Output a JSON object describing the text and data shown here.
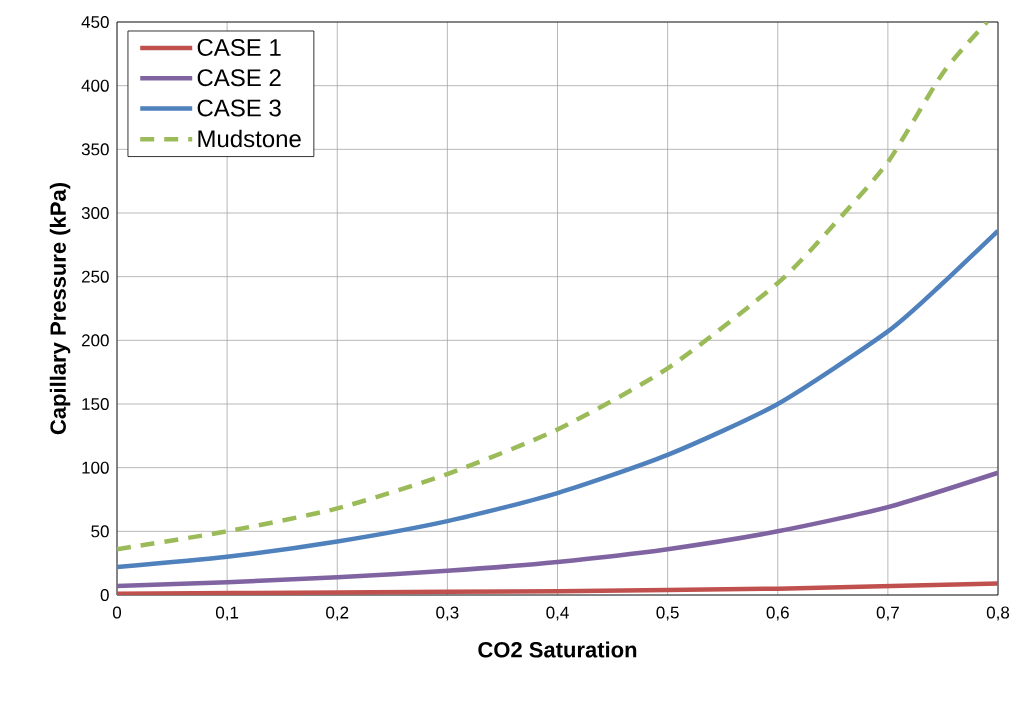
{
  "chart_data": {
    "type": "line",
    "xlabel": "CO2 Saturation",
    "ylabel": "Capillary Pressure (kPa)",
    "xlim": [
      0,
      0.8
    ],
    "ylim": [
      0,
      450
    ],
    "xticks": [
      0,
      {
        "value": 0.1,
        "label": "0,1"
      },
      {
        "value": 0.2,
        "label": "0,2"
      },
      {
        "value": 0.3,
        "label": "0,3"
      },
      {
        "value": 0.4,
        "label": "0,4"
      },
      {
        "value": 0.5,
        "label": "0,5"
      },
      {
        "value": 0.6,
        "label": "0,6"
      },
      {
        "value": 0.7,
        "label": "0,7"
      },
      {
        "value": 0.8,
        "label": "0,8"
      }
    ],
    "yticks": [
      0,
      50,
      100,
      150,
      200,
      250,
      300,
      350,
      400,
      450
    ],
    "grid": true,
    "legend": "top left",
    "series": [
      {
        "name": "CASE 1",
        "color": "#c0504d",
        "line_style": "solid",
        "x": [
          0,
          0.2,
          0.4,
          0.6,
          0.8
        ],
        "values": [
          1,
          2,
          3,
          5,
          9
        ]
      },
      {
        "name": "CASE 2",
        "color": "#8064a2",
        "line_style": "solid",
        "x": [
          0,
          0.1,
          0.2,
          0.3,
          0.4,
          0.5,
          0.6,
          0.7,
          0.8
        ],
        "values": [
          7,
          10,
          14,
          19,
          26,
          36,
          50,
          69,
          96
        ]
      },
      {
        "name": "CASE 3",
        "color": "#4f81bd",
        "line_style": "solid",
        "x": [
          0,
          0.1,
          0.2,
          0.3,
          0.4,
          0.5,
          0.6,
          0.7,
          0.75,
          0.8
        ],
        "values": [
          22,
          30,
          42,
          58,
          80,
          110,
          150,
          207,
          245,
          286
        ]
      },
      {
        "name": "Mudstone",
        "color": "#9bbb59",
        "line_style": "dashed",
        "x": [
          0,
          0.1,
          0.2,
          0.3,
          0.4,
          0.5,
          0.6,
          0.65,
          0.7,
          0.75,
          0.79
        ],
        "values": [
          36,
          50,
          68,
          95,
          130,
          178,
          245,
          290,
          340,
          410,
          450
        ]
      }
    ]
  }
}
